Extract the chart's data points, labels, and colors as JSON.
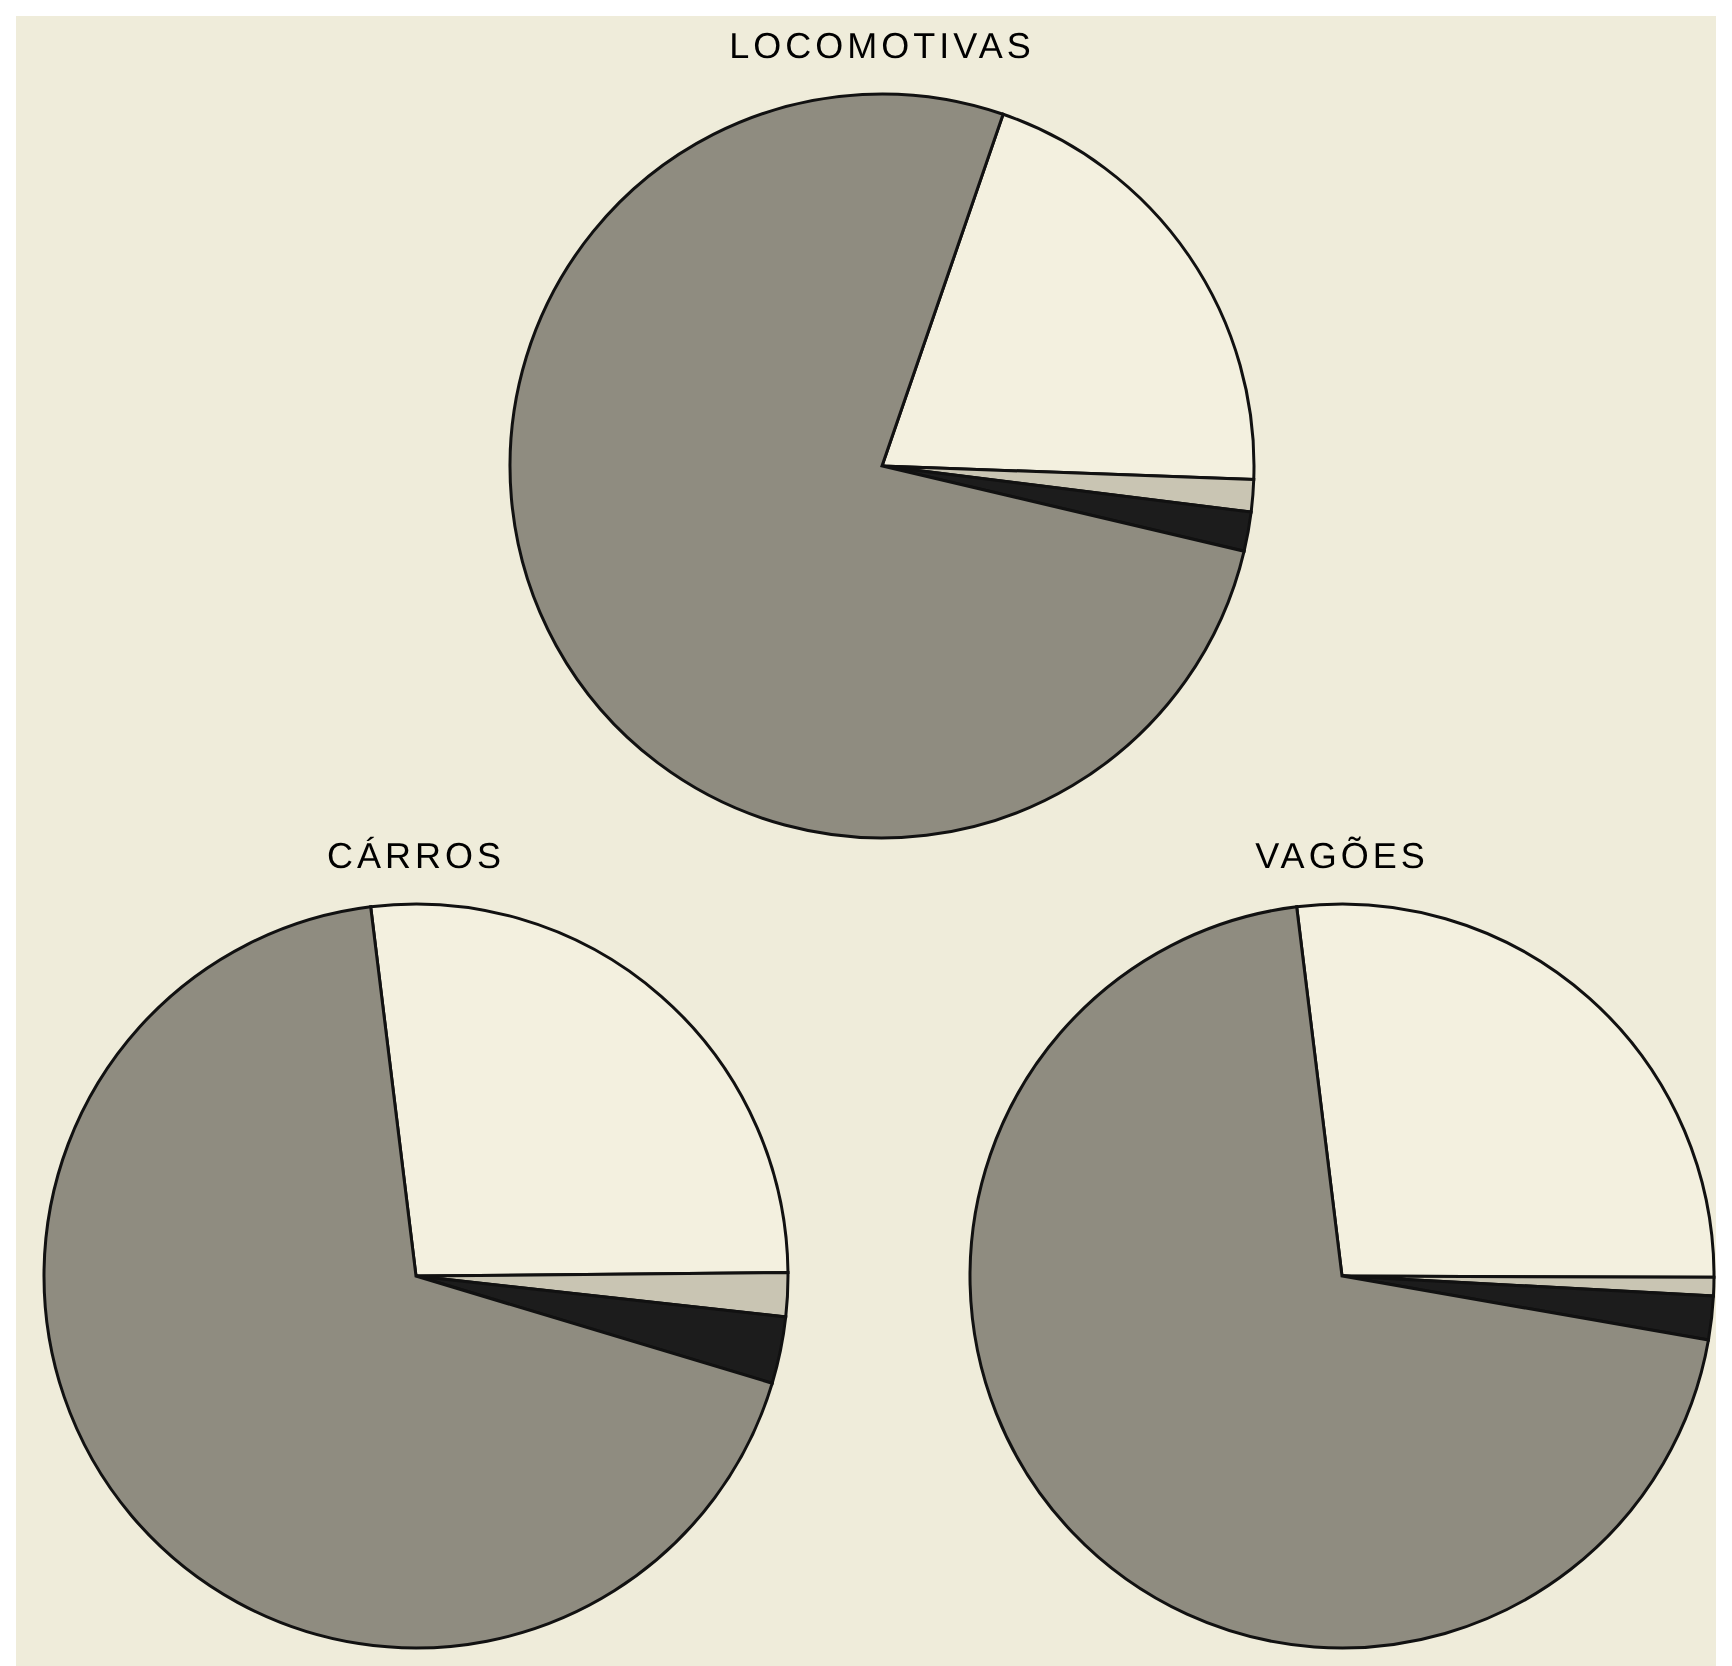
{
  "chart_data": [
    {
      "type": "pie",
      "title": "LOCOMOTIVAS",
      "categories": [
        null,
        null,
        null,
        null
      ],
      "values": [
        20.3,
        1.4,
        1.7,
        76.6
      ],
      "colors": [
        "#f3f0df",
        "#c9c5b3",
        "#1c1c1c",
        "#8f8c80"
      ]
    },
    {
      "type": "pie",
      "title": "CÁRROS",
      "categories": [
        null,
        null,
        null,
        null
      ],
      "values": [
        26.8,
        1.9,
        2.9,
        68.4
      ],
      "colors": [
        "#f3f0df",
        "#c9c5b3",
        "#1c1c1c",
        "#8f8c80"
      ]
    },
    {
      "type": "pie",
      "title": "VAGÕES",
      "categories": [
        null,
        null,
        null,
        null
      ],
      "values": [
        27.0,
        0.8,
        1.9,
        70.3
      ],
      "colors": [
        "#f3f0df",
        "#c9c5b3",
        "#1c1c1c",
        "#8f8c80"
      ]
    }
  ]
}
